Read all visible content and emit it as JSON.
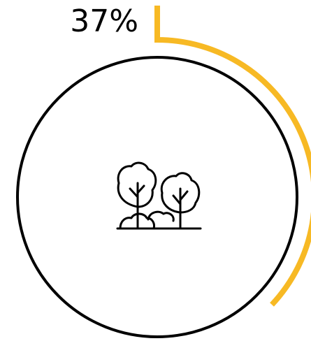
{
  "chart_data": {
    "type": "progress",
    "values": [
      37
    ],
    "value_labels": [
      "37%"
    ],
    "color": "#f7b924"
  }
}
